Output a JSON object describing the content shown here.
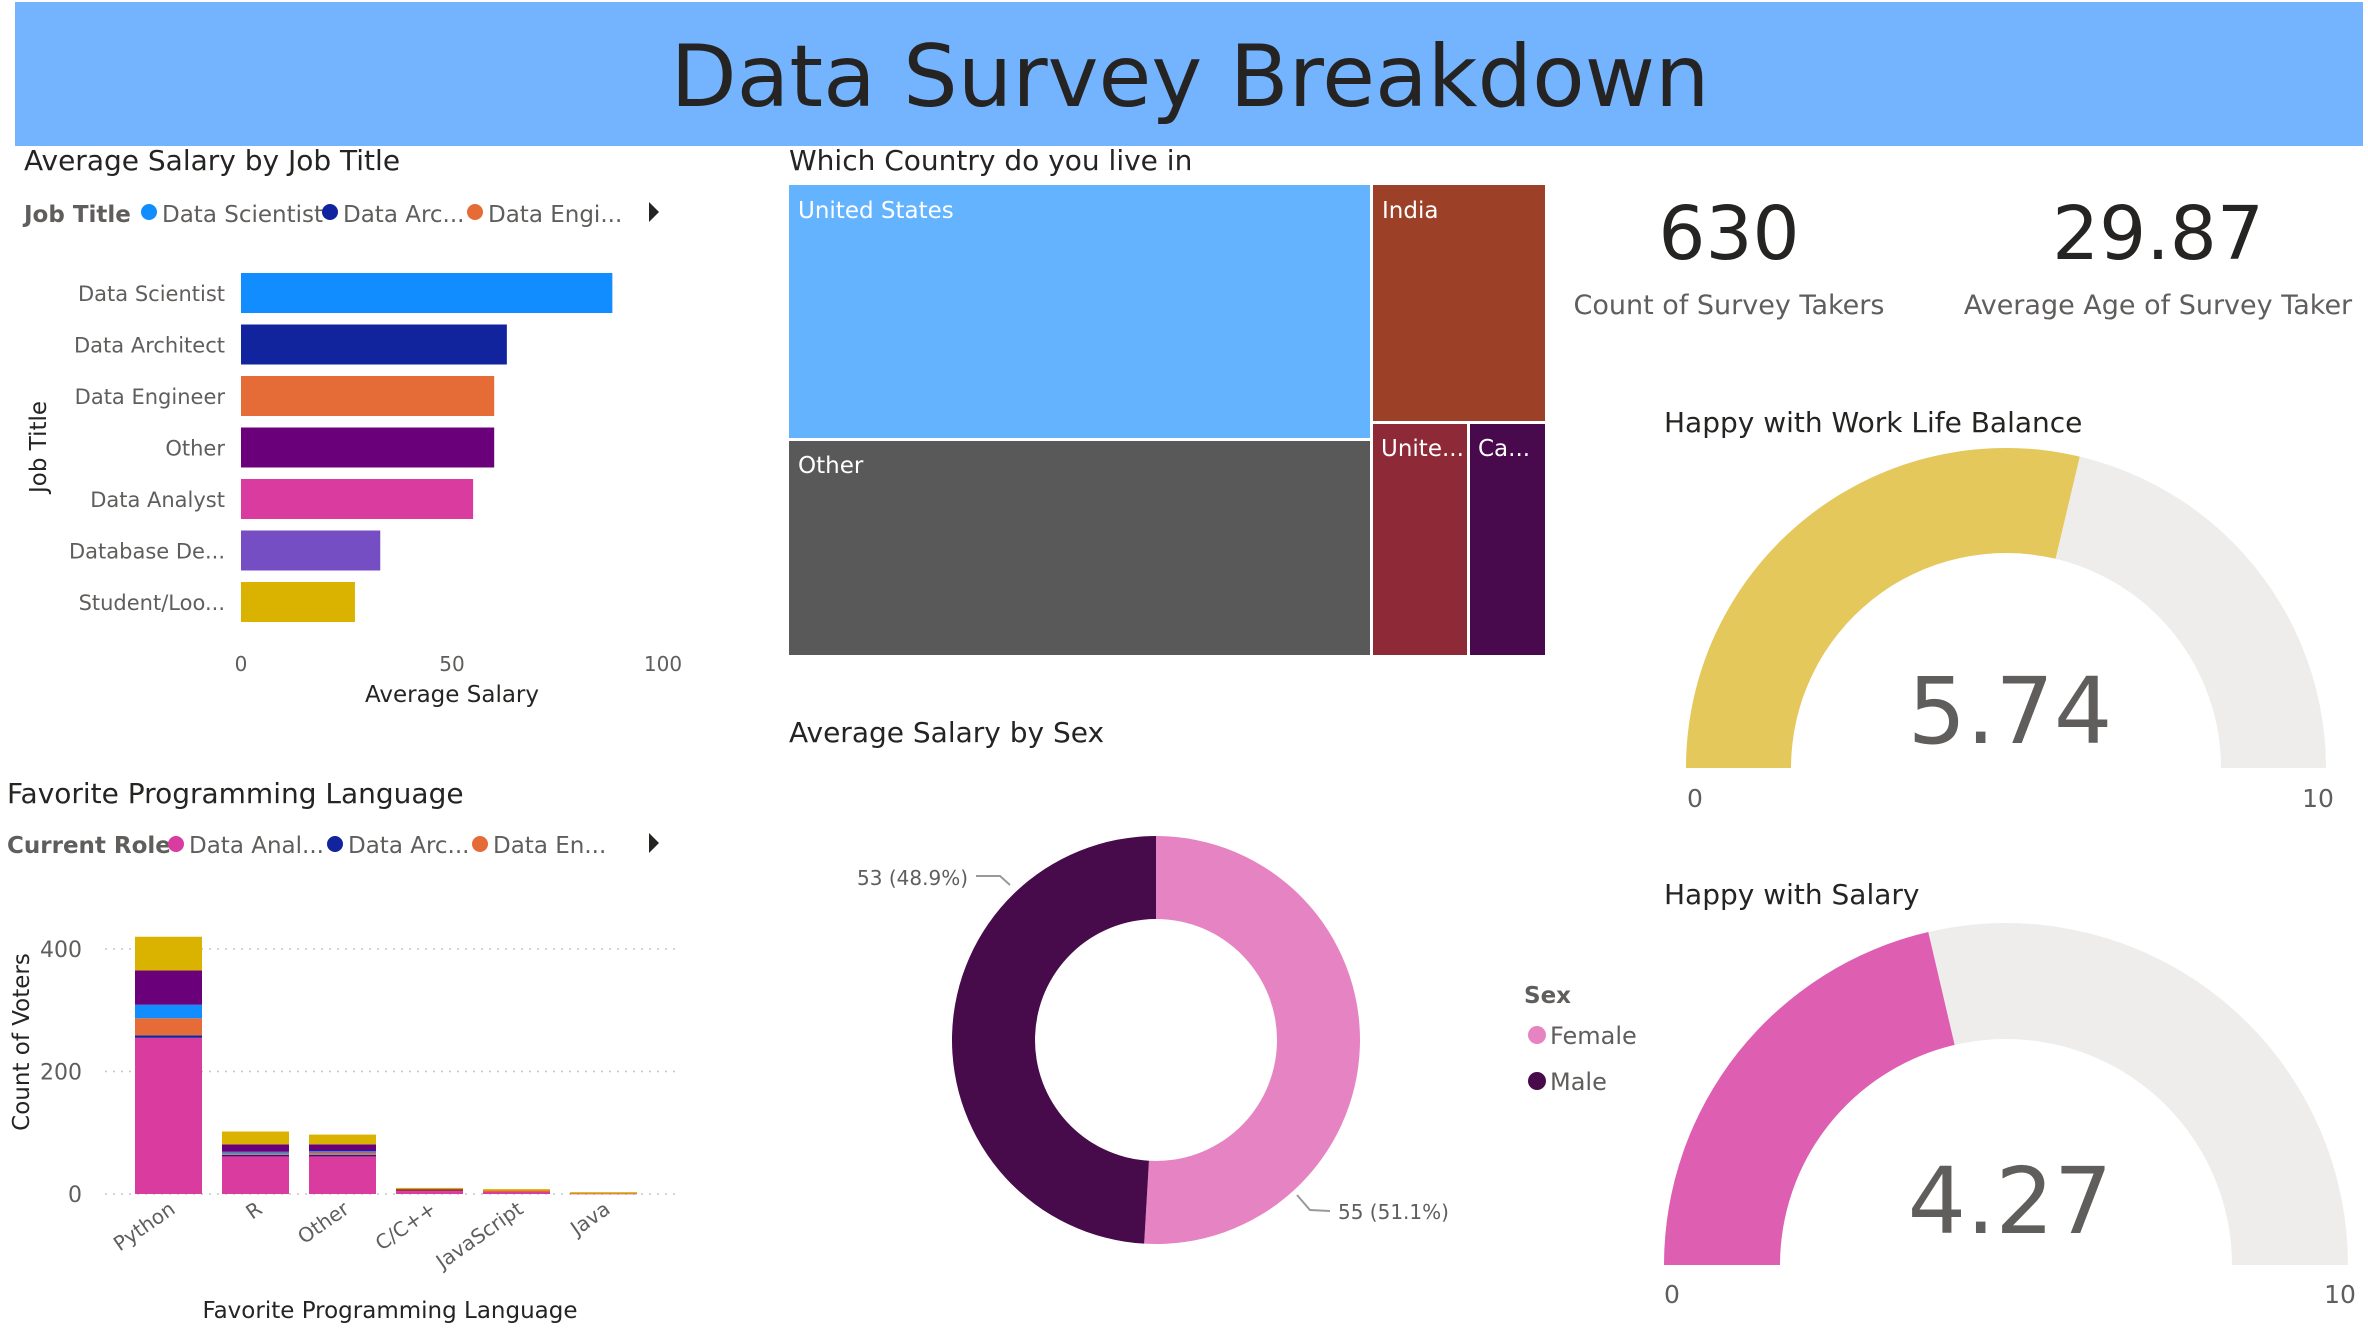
{
  "page_title": "Data Survey Breakdown",
  "colors": {
    "banner": "#74b3fd",
    "gauge_bg": "#eeedec",
    "text_dark": "#252423",
    "text_mid": "#605e5c"
  },
  "cards": [
    {
      "value": "630",
      "label": "Count of Survey Takers"
    },
    {
      "value": "29.87",
      "label": "Average Age of Survey Taker"
    }
  ],
  "chart_data": [
    {
      "type": "bar",
      "orientation": "horizontal",
      "title": "Average Salary by Job Title",
      "legend_title": "Job Title",
      "legend": [
        "Data Scientist",
        "Data Arc...",
        "Data Engi..."
      ],
      "legend_colors": [
        "#118dff",
        "#12239e",
        "#e66c37"
      ],
      "categories": [
        "Data Scientist",
        "Data Architect",
        "Data Engineer",
        "Other",
        "Data Analyst",
        "Database De...",
        "Student/Loo..."
      ],
      "values": [
        88,
        63,
        60,
        60,
        55,
        33,
        27
      ],
      "colors": [
        "#118dff",
        "#12239e",
        "#e66c37",
        "#6b007b",
        "#d93b9f",
        "#744ec2",
        "#d9b300"
      ],
      "xlabel": "Average Salary",
      "ylabel": "Job Title",
      "xlim": [
        0,
        100
      ],
      "xticks": [
        "0",
        "50",
        "100"
      ]
    },
    {
      "type": "treemap",
      "title": "Which Country do you live in",
      "labels": [
        "United States",
        "India",
        "Other",
        "Unite...",
        "Ca..."
      ],
      "colors": [
        "#64b3ff",
        "#9c4128",
        "#595959",
        "#8e2938",
        "#490a4d"
      ]
    },
    {
      "type": "pie",
      "variant": "donut",
      "title": "Average Salary by Sex",
      "legend_title": "Sex",
      "categories": [
        "Female",
        "Male"
      ],
      "values": [
        55,
        53
      ],
      "labels": [
        "55 (51.1%)",
        "53 (48.9%)"
      ],
      "colors": [
        "#e684c3",
        "#470a4a"
      ]
    },
    {
      "type": "bar",
      "stacked": true,
      "title": "Favorite Programming Language",
      "legend_title": "Current Role",
      "legend": [
        "Data Anal...",
        "Data Arc...",
        "Data En..."
      ],
      "legend_colors": [
        "#d93b9f",
        "#12239e",
        "#e66c37"
      ],
      "categories": [
        "Python",
        "R",
        "Other",
        "C/C++",
        "JavaScript",
        "Java"
      ],
      "series": [
        {
          "color": "#d93b9f",
          "values": [
            255,
            62,
            62,
            6,
            5,
            2
          ]
        },
        {
          "color": "#12239e",
          "values": [
            4,
            2,
            2,
            0,
            0,
            0
          ]
        },
        {
          "color": "#e66c37",
          "values": [
            28,
            3,
            4,
            1,
            1,
            0
          ]
        },
        {
          "color": "#118dff",
          "values": [
            22,
            2,
            2,
            0,
            0,
            0
          ]
        },
        {
          "color": "#6b007b",
          "values": [
            56,
            12,
            11,
            1,
            0,
            0
          ]
        },
        {
          "color": "#d9b300",
          "values": [
            55,
            21,
            16,
            2,
            2,
            1
          ]
        }
      ],
      "xlabel": "Favorite Programming Language",
      "ylabel": "Count of Voters",
      "ylim": [
        0,
        450
      ],
      "yticks": [
        "0",
        "200",
        "400"
      ]
    },
    {
      "type": "gauge",
      "title": "Happy with Work Life Balance",
      "value": 5.74,
      "value_label": "5.74",
      "min": 0,
      "max": 10,
      "min_label": "0",
      "max_label": "10",
      "color": "#e5c85c"
    },
    {
      "type": "gauge",
      "title": "Happy with Salary",
      "value": 4.27,
      "value_label": "4.27",
      "min": 0,
      "max": 10,
      "min_label": "0",
      "max_label": "10",
      "color": "#de5fb2"
    }
  ]
}
